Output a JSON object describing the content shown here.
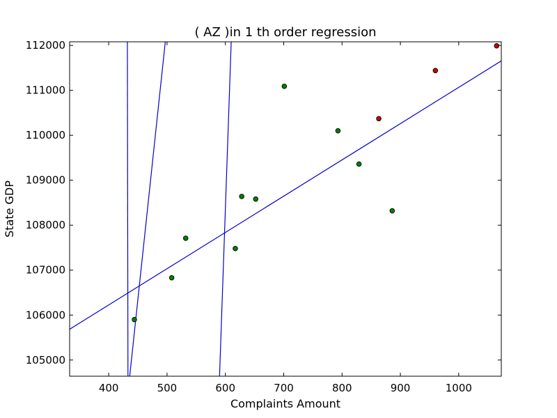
{
  "chart_data": {
    "type": "scatter",
    "title": "(  AZ  )in 1 th order regression",
    "xlabel": "Complaints Amount",
    "ylabel": "State GDP",
    "xlim": [
      333,
      1073
    ],
    "ylim": [
      104640,
      112080
    ],
    "x_ticks": [
      400,
      500,
      600,
      700,
      800,
      900,
      1000
    ],
    "y_ticks": [
      105000,
      106000,
      107000,
      108000,
      109000,
      110000,
      111000,
      112000
    ],
    "grid": false,
    "colors": {
      "frame": "#000000",
      "line": "#0000cc",
      "point_stroke": "#000000"
    },
    "series": [
      {
        "type": "scatter",
        "color": "#008000",
        "points": [
          [
            444,
            105900
          ],
          [
            508,
            106830
          ],
          [
            532,
            107710
          ],
          [
            617,
            107480
          ],
          [
            628,
            108640
          ],
          [
            652,
            108580
          ],
          [
            701,
            111090
          ],
          [
            793,
            110100
          ],
          [
            829,
            109360
          ],
          [
            886,
            108320
          ]
        ]
      },
      {
        "type": "scatter",
        "color": "#cc0000",
        "points": [
          [
            863,
            110370
          ],
          [
            960,
            111440
          ],
          [
            1065,
            111990
          ]
        ]
      },
      {
        "type": "line",
        "color": "#0000cc",
        "points": [
          [
            333,
            105685
          ],
          [
            1073,
            111655
          ]
        ]
      },
      {
        "type": "line",
        "color": "#0000cc",
        "points": [
          [
            433,
            104640
          ],
          [
            432,
            112080
          ]
        ]
      },
      {
        "type": "line",
        "color": "#0000cc",
        "points": [
          [
            436,
            104640
          ],
          [
            497,
            112080
          ]
        ]
      },
      {
        "type": "line",
        "color": "#0000cc",
        "points": [
          [
            590,
            104640
          ],
          [
            610,
            112080
          ]
        ]
      }
    ]
  }
}
